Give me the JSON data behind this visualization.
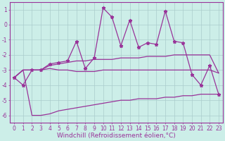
{
  "xlabel": "Windchill (Refroidissement éolien,°C)",
  "background_color": "#cceee8",
  "grid_color": "#aacccc",
  "line_color": "#993399",
  "x": [
    0,
    1,
    2,
    3,
    4,
    5,
    6,
    7,
    8,
    9,
    10,
    11,
    12,
    13,
    14,
    15,
    16,
    17,
    18,
    19,
    20,
    21,
    22,
    23
  ],
  "y_main": [
    -3.5,
    -4.0,
    -3.0,
    -3.0,
    -2.6,
    -2.5,
    -2.4,
    -1.1,
    -2.9,
    -2.2,
    1.1,
    0.5,
    -1.4,
    0.3,
    -1.5,
    -1.2,
    -1.3,
    0.9,
    -1.1,
    -1.2,
    -3.3,
    -4.0,
    -2.7,
    -4.6
  ],
  "y_upper": [
    -3.5,
    -3.0,
    -3.0,
    -3.0,
    -2.7,
    -2.6,
    -2.5,
    -2.4,
    -2.4,
    -2.3,
    -2.3,
    -2.3,
    -2.2,
    -2.2,
    -2.2,
    -2.1,
    -2.1,
    -2.1,
    -2.0,
    -2.0,
    -2.0,
    -2.0,
    -2.0,
    -3.2
  ],
  "y_lower": [
    -3.5,
    -3.0,
    -3.0,
    -3.0,
    -2.9,
    -3.0,
    -3.0,
    -3.1,
    -3.1,
    -3.1,
    -3.0,
    -3.0,
    -3.0,
    -3.0,
    -3.0,
    -3.0,
    -3.0,
    -3.0,
    -3.0,
    -3.0,
    -3.0,
    -3.0,
    -3.0,
    -3.2
  ],
  "y_bottom": [
    -3.5,
    -3.0,
    -6.0,
    -6.0,
    -5.9,
    -5.7,
    -5.6,
    -5.5,
    -5.4,
    -5.3,
    -5.2,
    -5.1,
    -5.0,
    -5.0,
    -4.9,
    -4.9,
    -4.9,
    -4.8,
    -4.8,
    -4.7,
    -4.7,
    -4.6,
    -4.6,
    -4.6
  ],
  "ylim": [
    -6.5,
    1.5
  ],
  "yticks": [
    1,
    0,
    -1,
    -2,
    -3,
    -4,
    -5,
    -6
  ],
  "xticks": [
    0,
    1,
    2,
    3,
    4,
    5,
    6,
    7,
    8,
    9,
    10,
    11,
    12,
    13,
    14,
    15,
    16,
    17,
    18,
    19,
    20,
    21,
    22,
    23
  ],
  "tick_fontsize": 5.5,
  "label_fontsize": 6.5
}
